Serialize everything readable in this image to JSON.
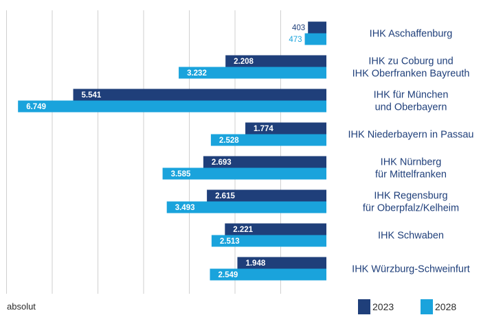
{
  "chart_data": {
    "type": "bar",
    "orientation": "horizontal",
    "unit_label": "absolut",
    "categories": [
      [
        "IHK Aschaffenburg"
      ],
      [
        "IHK zu Coburg und",
        "IHK Oberfranken Bayreuth"
      ],
      [
        "IHK für München",
        "und Oberbayern"
      ],
      [
        "IHK Niederbayern in Passau"
      ],
      [
        "IHK Nürnberg",
        "für Mittelfranken"
      ],
      [
        "IHK Regensburg",
        "für Oberpfalz/Kelheim"
      ],
      [
        "IHK Schwaben"
      ],
      [
        "IHK Würzburg-Schweinfurt"
      ]
    ],
    "series": [
      {
        "name": "2023",
        "color": "#1f3f7a",
        "values": [
          403,
          2208,
          5541,
          1774,
          2693,
          2615,
          2221,
          1948
        ],
        "labels": [
          "403",
          "2.208",
          "5.541",
          "1.774",
          "2.693",
          "2.615",
          "2.221",
          "1.948"
        ]
      },
      {
        "name": "2028",
        "color": "#1aa3dc",
        "values": [
          473,
          3232,
          6749,
          2528,
          3585,
          3493,
          2513,
          2549
        ],
        "labels": [
          "473",
          "3.232",
          "6.749",
          "2.528",
          "3.585",
          "3.493",
          "2.513",
          "2.549"
        ]
      }
    ],
    "xlim": [
      0,
      7000
    ],
    "grid": true,
    "legend_position": "bottom-right"
  }
}
